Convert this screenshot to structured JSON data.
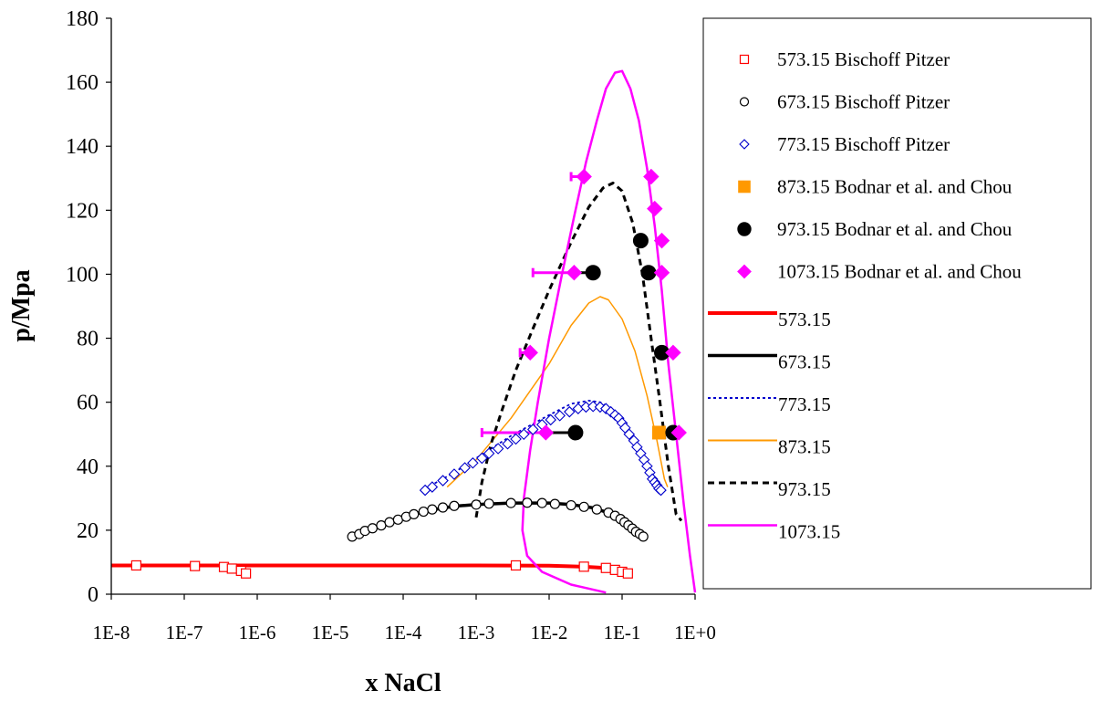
{
  "chart_data": {
    "type": "scatter",
    "title": "",
    "xlabel": "x NaCl",
    "ylabel": "p/Mpa",
    "xscale": "log",
    "xlim": [
      1e-08,
      1
    ],
    "ylim": [
      0,
      180
    ],
    "x_ticks": [
      {
        "value": 1e-08,
        "label": "1E-8"
      },
      {
        "value": 1e-07,
        "label": "1E-7"
      },
      {
        "value": 1e-06,
        "label": "1E-6"
      },
      {
        "value": 1e-05,
        "label": "1E-5"
      },
      {
        "value": 0.0001,
        "label": "1E-4"
      },
      {
        "value": 0.001,
        "label": "1E-3"
      },
      {
        "value": 0.01,
        "label": "1E-2"
      },
      {
        "value": 0.1,
        "label": "1E-1"
      },
      {
        "value": 1,
        "label": "1E+0"
      }
    ],
    "y_ticks": [
      0,
      20,
      40,
      60,
      80,
      100,
      120,
      140,
      160,
      180
    ],
    "grid": false,
    "legend_position": "right",
    "colors": {
      "red": "#ff0000",
      "black": "#000000",
      "blue": "#0000cc",
      "orange": "#ff9900",
      "magenta": "#ff00ff"
    },
    "scatter_series": [
      {
        "name": "573.15 Bischoff Pitzer",
        "marker": "square-open",
        "color": "#ff0000",
        "points": [
          [
            2.2e-08,
            9.0
          ],
          [
            1.4e-07,
            8.8
          ],
          [
            3.5e-07,
            8.5
          ],
          [
            4.5e-07,
            8.0
          ],
          [
            6e-07,
            7.3
          ],
          [
            7e-07,
            6.5
          ],
          [
            0.0035,
            9.0
          ],
          [
            0.03,
            8.6
          ],
          [
            0.06,
            8.2
          ],
          [
            0.08,
            7.6
          ],
          [
            0.1,
            7.0
          ],
          [
            0.12,
            6.5
          ]
        ]
      },
      {
        "name": "673.15 Bischoff Pitzer",
        "marker": "circle-open",
        "color": "#000000",
        "points": [
          [
            2e-05,
            18.0
          ],
          [
            2.5e-05,
            18.8
          ],
          [
            3e-05,
            19.8
          ],
          [
            3.8e-05,
            20.6
          ],
          [
            5e-05,
            21.5
          ],
          [
            6.5e-05,
            22.5
          ],
          [
            8.5e-05,
            23.3
          ],
          [
            0.00011,
            24.2
          ],
          [
            0.00014,
            25.0
          ],
          [
            0.00019,
            25.8
          ],
          [
            0.00025,
            26.5
          ],
          [
            0.00035,
            27.1
          ],
          [
            0.0005,
            27.6
          ],
          [
            0.001,
            28.0
          ],
          [
            0.0015,
            28.3
          ],
          [
            0.003,
            28.5
          ],
          [
            0.005,
            28.6
          ],
          [
            0.008,
            28.5
          ],
          [
            0.012,
            28.2
          ],
          [
            0.02,
            27.8
          ],
          [
            0.03,
            27.3
          ],
          [
            0.045,
            26.5
          ],
          [
            0.065,
            25.5
          ],
          [
            0.08,
            24.5
          ],
          [
            0.095,
            23.5
          ],
          [
            0.108,
            22.5
          ],
          [
            0.122,
            21.5
          ],
          [
            0.138,
            20.5
          ],
          [
            0.155,
            19.5
          ],
          [
            0.175,
            18.8
          ],
          [
            0.195,
            18.0
          ]
        ]
      },
      {
        "name": "773.15 Bischoff Pitzer",
        "marker": "diamond-open",
        "color": "#0000cc",
        "points": [
          [
            0.0002,
            32.5
          ],
          [
            0.00025,
            33.5
          ],
          [
            0.00035,
            35.5
          ],
          [
            0.0005,
            37.5
          ],
          [
            0.0007,
            39.5
          ],
          [
            0.0009,
            41.0
          ],
          [
            0.0012,
            42.5
          ],
          [
            0.0015,
            44.0
          ],
          [
            0.002,
            45.5
          ],
          [
            0.0027,
            47.0
          ],
          [
            0.0035,
            48.5
          ],
          [
            0.0045,
            50.0
          ],
          [
            0.006,
            51.5
          ],
          [
            0.008,
            53.0
          ],
          [
            0.0105,
            54.5
          ],
          [
            0.014,
            55.8
          ],
          [
            0.019,
            57.0
          ],
          [
            0.025,
            58.0
          ],
          [
            0.032,
            58.5
          ],
          [
            0.04,
            58.7
          ],
          [
            0.05,
            58.5
          ],
          [
            0.06,
            58.0
          ],
          [
            0.07,
            57.0
          ],
          [
            0.08,
            56.0
          ],
          [
            0.09,
            55.0
          ],
          [
            0.1,
            53.5
          ],
          [
            0.11,
            52.0
          ],
          [
            0.125,
            50.0
          ],
          [
            0.145,
            48.0
          ],
          [
            0.16,
            46.0
          ],
          [
            0.18,
            44.0
          ],
          [
            0.2,
            42.0
          ],
          [
            0.22,
            40.0
          ],
          [
            0.24,
            38.0
          ],
          [
            0.26,
            36.0
          ],
          [
            0.28,
            35.0
          ],
          [
            0.3,
            34.0
          ],
          [
            0.32,
            33.0
          ],
          [
            0.34,
            32.5
          ]
        ]
      },
      {
        "name": "873.15 Bodnar et al. and Chou",
        "marker": "square-filled",
        "color": "#ff9900",
        "points": [
          [
            0.32,
            50.5
          ]
        ]
      },
      {
        "name": "973.15 Bodnar et al. and Chou",
        "marker": "circle-filled",
        "color": "#000000",
        "points": [
          [
            0.023,
            50.5
          ],
          [
            0.04,
            100.5
          ],
          [
            0.18,
            110.5
          ],
          [
            0.23,
            100.5
          ],
          [
            0.35,
            75.5
          ],
          [
            0.5,
            50.5
          ]
        ]
      },
      {
        "name": "1073.15 Bodnar et al. and Chou",
        "marker": "diamond-filled",
        "color": "#ff00ff",
        "points": [
          [
            0.009,
            50.5
          ],
          [
            0.0055,
            75.5
          ],
          [
            0.022,
            100.5
          ],
          [
            0.03,
            130.5
          ],
          [
            0.25,
            130.5
          ],
          [
            0.28,
            120.5
          ],
          [
            0.35,
            110.5
          ],
          [
            0.35,
            100.5
          ],
          [
            0.5,
            75.5
          ],
          [
            0.6,
            50.5
          ]
        ]
      }
    ],
    "error_bars": [
      {
        "color": "#ff00ff",
        "y": 50.5,
        "x_from": 0.0012,
        "x_to": 0.009
      },
      {
        "color": "#ff00ff",
        "y": 75.5,
        "x_from": 0.004,
        "x_to": 0.0055
      },
      {
        "color": "#ff00ff",
        "y": 100.5,
        "x_from": 0.006,
        "x_to": 0.022
      },
      {
        "color": "#ff00ff",
        "y": 130.5,
        "x_from": 0.02,
        "x_to": 0.03
      },
      {
        "color": "#000000",
        "y": 50.5,
        "x_from": 0.009,
        "x_to": 0.023
      },
      {
        "color": "#000000",
        "y": 100.5,
        "x_from": 0.022,
        "x_to": 0.04
      }
    ],
    "line_series": [
      {
        "name": "573.15",
        "style": "solid",
        "width": 4,
        "color": "#ff0000",
        "points": [
          [
            1e-08,
            9.0
          ],
          [
            1e-06,
            9.0
          ],
          [
            0.0001,
            9.0
          ],
          [
            0.001,
            9.0
          ],
          [
            0.01,
            8.9
          ],
          [
            0.03,
            8.6
          ],
          [
            0.06,
            8.2
          ],
          [
            0.1,
            7.5
          ],
          [
            0.13,
            6.8
          ]
        ]
      },
      {
        "name": "673.15",
        "style": "solid",
        "width": 3.5,
        "color": "#000000",
        "points": [
          [
            2e-05,
            18.0
          ],
          [
            3e-05,
            19.5
          ],
          [
            5e-05,
            21.5
          ],
          [
            0.0001,
            24.0
          ],
          [
            0.0002,
            26.0
          ],
          [
            0.0005,
            27.5
          ],
          [
            0.001,
            28.0
          ],
          [
            0.003,
            28.5
          ],
          [
            0.01,
            28.5
          ],
          [
            0.02,
            28.0
          ],
          [
            0.04,
            27.0
          ],
          [
            0.07,
            25.2
          ],
          [
            0.1,
            23.0
          ],
          [
            0.14,
            20.5
          ],
          [
            0.2,
            18.0
          ]
        ]
      },
      {
        "name": "773.15",
        "style": "dotted",
        "width": 1.8,
        "color": "#0000cc",
        "points": [
          [
            0.0002,
            33.0
          ],
          [
            0.0005,
            38.0
          ],
          [
            0.001,
            42.5
          ],
          [
            0.003,
            49.5
          ],
          [
            0.01,
            56.0
          ],
          [
            0.02,
            59.5
          ],
          [
            0.035,
            60.5
          ],
          [
            0.05,
            60.0
          ],
          [
            0.07,
            58.0
          ],
          [
            0.1,
            54.0
          ],
          [
            0.15,
            47.0
          ],
          [
            0.22,
            39.0
          ],
          [
            0.28,
            35.0
          ],
          [
            0.34,
            32.5
          ]
        ]
      },
      {
        "name": "873.15",
        "style": "solid",
        "width": 1.5,
        "color": "#ff9900",
        "points": [
          [
            0.0004,
            33.5
          ],
          [
            0.001,
            42.0
          ],
          [
            0.003,
            55.0
          ],
          [
            0.01,
            72.0
          ],
          [
            0.02,
            84.0
          ],
          [
            0.035,
            91.0
          ],
          [
            0.05,
            93.0
          ],
          [
            0.065,
            92.0
          ],
          [
            0.1,
            86.0
          ],
          [
            0.15,
            76.0
          ],
          [
            0.22,
            62.0
          ],
          [
            0.3,
            48.0
          ],
          [
            0.38,
            36.0
          ],
          [
            0.42,
            33.5
          ]
        ]
      },
      {
        "name": "973.15",
        "style": "dashed",
        "width": 3,
        "color": "#000000",
        "points": [
          [
            0.001,
            24.0
          ],
          [
            0.0012,
            35.0
          ],
          [
            0.0016,
            47.0
          ],
          [
            0.0023,
            58.0
          ],
          [
            0.0035,
            70.0
          ],
          [
            0.006,
            83.0
          ],
          [
            0.01,
            95.0
          ],
          [
            0.02,
            110.0
          ],
          [
            0.035,
            121.0
          ],
          [
            0.055,
            127.0
          ],
          [
            0.075,
            128.5
          ],
          [
            0.1,
            126.0
          ],
          [
            0.14,
            116.0
          ],
          [
            0.19,
            100.0
          ],
          [
            0.25,
            80.0
          ],
          [
            0.33,
            60.0
          ],
          [
            0.43,
            40.0
          ],
          [
            0.55,
            25.0
          ],
          [
            0.65,
            23.0
          ]
        ]
      },
      {
        "name": "1073.15",
        "style": "solid",
        "width": 2.5,
        "color": "#ff00ff",
        "points": [
          [
            0.06,
            0.5
          ],
          [
            0.02,
            3.0
          ],
          [
            0.008,
            7.0
          ],
          [
            0.005,
            12.0
          ],
          [
            0.0043,
            20.0
          ],
          [
            0.0045,
            30.0
          ],
          [
            0.0055,
            45.0
          ],
          [
            0.007,
            60.0
          ],
          [
            0.01,
            80.0
          ],
          [
            0.015,
            100.0
          ],
          [
            0.022,
            118.0
          ],
          [
            0.032,
            135.0
          ],
          [
            0.045,
            148.0
          ],
          [
            0.06,
            158.0
          ],
          [
            0.08,
            163.0
          ],
          [
            0.1,
            163.5
          ],
          [
            0.13,
            158.0
          ],
          [
            0.17,
            148.0
          ],
          [
            0.22,
            133.0
          ],
          [
            0.28,
            115.0
          ],
          [
            0.35,
            95.0
          ],
          [
            0.43,
            72.0
          ],
          [
            0.55,
            50.0
          ],
          [
            0.7,
            28.0
          ],
          [
            0.85,
            12.0
          ],
          [
            1,
            0.5
          ]
        ]
      }
    ]
  }
}
